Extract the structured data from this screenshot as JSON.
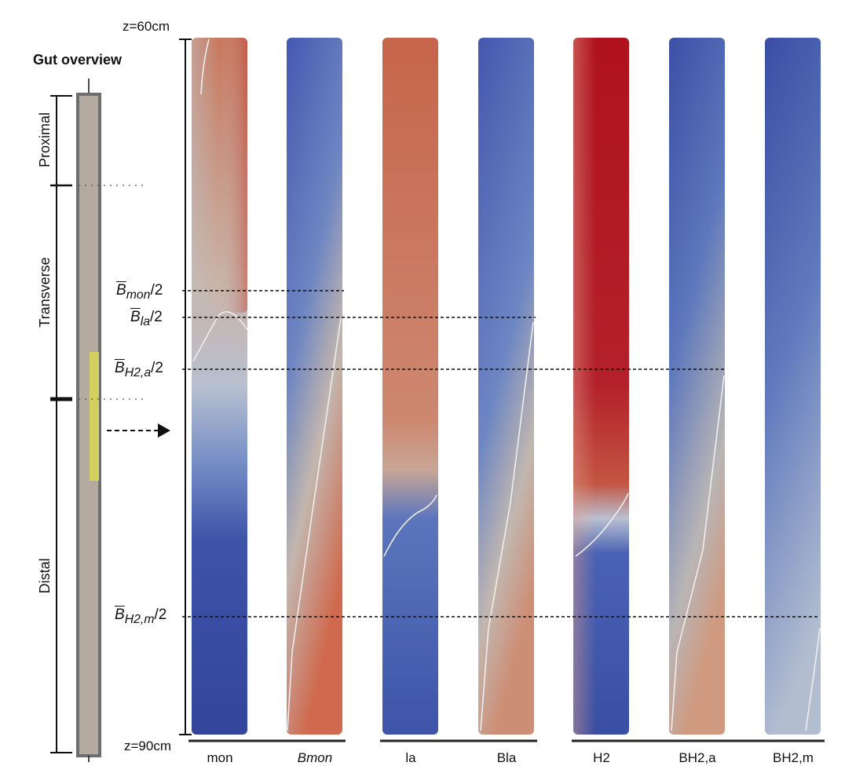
{
  "figure": {
    "title": "Gut overview",
    "z_top": "z=60cm",
    "z_bottom": "z=90cm",
    "regions": [
      "Proximal",
      "Transverse",
      "Distal"
    ],
    "markers": [
      {
        "base": "B",
        "sub": "mon",
        "suffix": "/2"
      },
      {
        "base": "B",
        "sub": "la",
        "suffix": "/2"
      },
      {
        "base": "B",
        "sub": "H2,a",
        "suffix": "/2"
      },
      {
        "base": "B",
        "sub": "H2,m",
        "suffix": "/2"
      }
    ],
    "columns": [
      {
        "label": "mon"
      },
      {
        "label": "Bmon"
      },
      {
        "label": "la"
      },
      {
        "label": "Bla"
      },
      {
        "label": "H2"
      },
      {
        "label": "BH2,a"
      },
      {
        "label": "BH2,m"
      }
    ],
    "colors": {
      "low": "#3a4fa3",
      "mid": "#c8c8c8",
      "high": "#b40f1d",
      "gut_fill": "#b5aaa0",
      "highlight": "#d4cf5e"
    }
  }
}
